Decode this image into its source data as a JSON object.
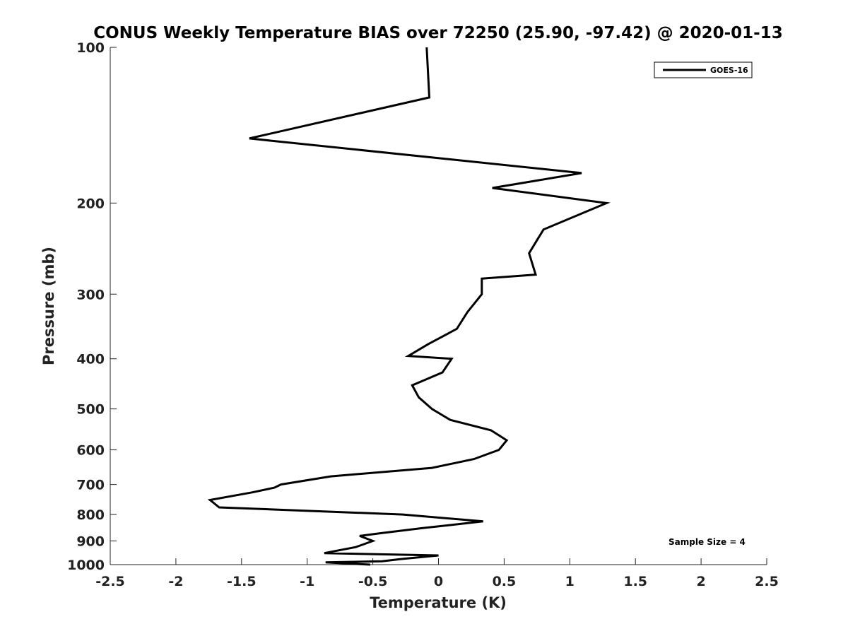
{
  "chart_data": {
    "type": "line",
    "title": "CONUS Weekly Temperature BIAS over 72250 (25.90, -97.42) @ 2020-01-13",
    "xlabel": "Temperature (K)",
    "ylabel": "Pressure (mb)",
    "xlim": [
      -2.5,
      2.5
    ],
    "ylim": [
      100,
      1000
    ],
    "y_scale": "log",
    "y_reversed": true,
    "x_ticks": [
      -2.5,
      -2,
      -1.5,
      -1,
      -0.5,
      0,
      0.5,
      1,
      1.5,
      2,
      2.5
    ],
    "x_tick_labels": [
      "-2.5",
      "-2",
      "-1.5",
      "-1",
      "-0.5",
      "0",
      "0.5",
      "1",
      "1.5",
      "2",
      "2.5"
    ],
    "y_ticks": [
      100,
      200,
      300,
      400,
      500,
      600,
      700,
      800,
      900,
      1000
    ],
    "y_tick_labels": [
      "100",
      "200",
      "300",
      "400",
      "500",
      "600",
      "700",
      "800",
      "900",
      "1000"
    ],
    "grid": false,
    "legend_position": "top-right",
    "annotation": "Sample Size = 4",
    "series": [
      {
        "name": "GOES-16",
        "color": "#000000",
        "points": [
          {
            "x": -0.09,
            "y": 100
          },
          {
            "x": -0.07,
            "y": 125
          },
          {
            "x": -1.44,
            "y": 150
          },
          {
            "x": 1.09,
            "y": 175
          },
          {
            "x": 0.41,
            "y": 187
          },
          {
            "x": 1.28,
            "y": 200
          },
          {
            "x": 0.8,
            "y": 225
          },
          {
            "x": 0.69,
            "y": 250
          },
          {
            "x": 0.74,
            "y": 275
          },
          {
            "x": 0.33,
            "y": 280
          },
          {
            "x": 0.33,
            "y": 300
          },
          {
            "x": 0.22,
            "y": 325
          },
          {
            "x": 0.14,
            "y": 350
          },
          {
            "x": -0.08,
            "y": 375
          },
          {
            "x": -0.23,
            "y": 395
          },
          {
            "x": 0.1,
            "y": 400
          },
          {
            "x": 0.03,
            "y": 425
          },
          {
            "x": -0.2,
            "y": 450
          },
          {
            "x": -0.15,
            "y": 475
          },
          {
            "x": -0.05,
            "y": 500
          },
          {
            "x": 0.09,
            "y": 525
          },
          {
            "x": 0.4,
            "y": 550
          },
          {
            "x": 0.52,
            "y": 575
          },
          {
            "x": 0.46,
            "y": 600
          },
          {
            "x": 0.27,
            "y": 625
          },
          {
            "x": -0.05,
            "y": 650
          },
          {
            "x": -0.82,
            "y": 675
          },
          {
            "x": -1.2,
            "y": 700
          },
          {
            "x": -1.25,
            "y": 710
          },
          {
            "x": -1.42,
            "y": 725
          },
          {
            "x": -1.74,
            "y": 750
          },
          {
            "x": -1.67,
            "y": 775
          },
          {
            "x": -0.27,
            "y": 800
          },
          {
            "x": 0.34,
            "y": 825
          },
          {
            "x": -0.12,
            "y": 850
          },
          {
            "x": -0.45,
            "y": 870
          },
          {
            "x": -0.6,
            "y": 880
          },
          {
            "x": -0.5,
            "y": 900
          },
          {
            "x": -0.63,
            "y": 925
          },
          {
            "x": -0.87,
            "y": 950
          },
          {
            "x": 0.0,
            "y": 960
          },
          {
            "x": -0.28,
            "y": 975
          },
          {
            "x": -0.43,
            "y": 985
          },
          {
            "x": -0.86,
            "y": 990
          },
          {
            "x": -0.52,
            "y": 1000
          }
        ]
      }
    ]
  }
}
